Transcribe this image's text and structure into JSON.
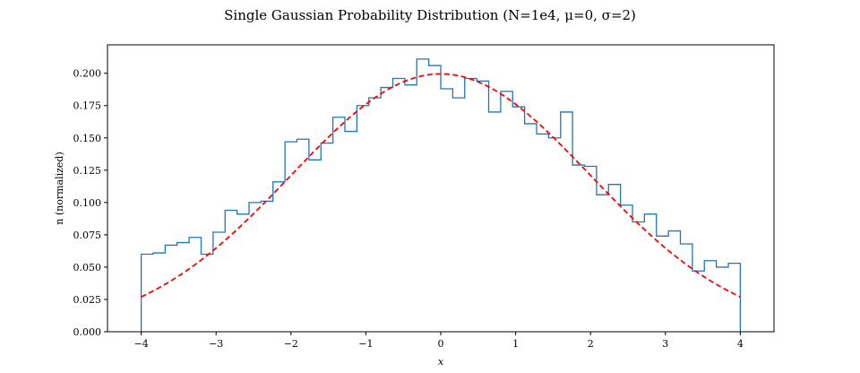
{
  "chart_data": {
    "type": "line",
    "title": "Single Gaussian Probability Distribution (N=1e4, μ=0, σ=2)",
    "xlabel": "x",
    "ylabel": "n (normalized)",
    "xlim": [
      -4.45,
      4.45
    ],
    "ylim": [
      0,
      0.222
    ],
    "xticks": [
      "−4",
      "−3",
      "−2",
      "−1",
      "0",
      "1",
      "2",
      "3",
      "4"
    ],
    "yticks": [
      "0.000",
      "0.025",
      "0.050",
      "0.075",
      "0.100",
      "0.125",
      "0.150",
      "0.175",
      "0.200"
    ],
    "grid": false,
    "series": [
      {
        "kind": "step-histogram",
        "color": "#1f77b4",
        "bin_edges": [
          -4.0,
          -3.84,
          -3.68,
          -3.52,
          -3.36,
          -3.2,
          -3.04,
          -2.88,
          -2.72,
          -2.56,
          -2.4,
          -2.24,
          -2.08,
          -1.92,
          -1.76,
          -1.6,
          -1.44,
          -1.28,
          -1.12,
          -0.96,
          -0.8,
          -0.64,
          -0.48,
          -0.32,
          -0.16,
          0.0,
          0.16,
          0.32,
          0.48,
          0.64,
          0.8,
          0.96,
          1.12,
          1.28,
          1.44,
          1.6,
          1.76,
          1.92,
          2.08,
          2.24,
          2.4,
          2.56,
          2.72,
          2.88,
          3.04,
          3.2,
          3.36,
          3.52,
          3.68,
          3.84,
          4.0
        ],
        "values": [
          0.06,
          0.061,
          0.067,
          0.069,
          0.073,
          0.06,
          0.077,
          0.094,
          0.091,
          0.1,
          0.101,
          0.116,
          0.147,
          0.149,
          0.133,
          0.146,
          0.166,
          0.155,
          0.175,
          0.181,
          0.189,
          0.196,
          0.191,
          0.211,
          0.206,
          0.188,
          0.181,
          0.196,
          0.194,
          0.17,
          0.186,
          0.174,
          0.161,
          0.153,
          0.15,
          0.17,
          0.129,
          0.128,
          0.106,
          0.114,
          0.098,
          0.085,
          0.091,
          0.074,
          0.078,
          0.068,
          0.047,
          0.055,
          0.05,
          0.053
        ]
      },
      {
        "kind": "gaussian-pdf",
        "color": "#ff0000",
        "style": "dashed",
        "mu": 0,
        "sigma": 2,
        "x_range": [
          -4,
          4
        ]
      }
    ]
  }
}
